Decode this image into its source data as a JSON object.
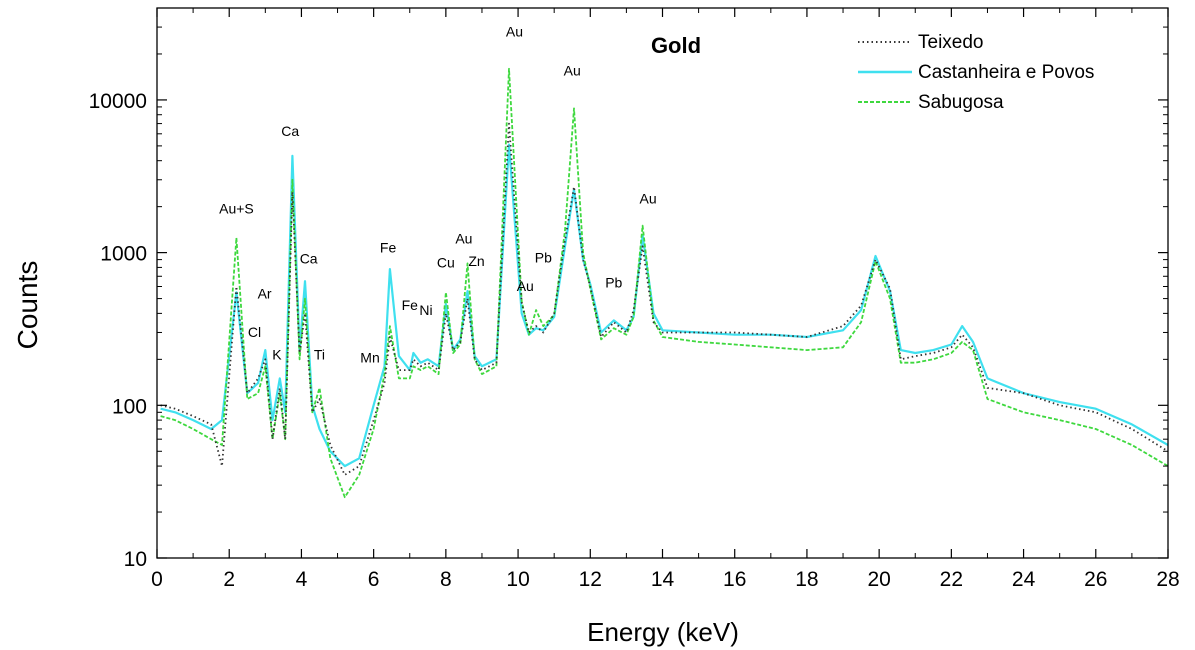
{
  "chart_data": {
    "type": "line",
    "title": "Gold",
    "xlabel": "Energy (keV)",
    "ylabel": "Counts",
    "xlim": [
      0,
      28
    ],
    "ylim": [
      10,
      40000
    ],
    "yscale": "log",
    "grid": false,
    "legend_position": "top-right",
    "x_ticks": [
      0,
      2,
      4,
      6,
      8,
      10,
      12,
      14,
      16,
      18,
      20,
      22,
      24,
      26,
      28
    ],
    "x_tick_labels": [
      "0",
      "2",
      "4",
      "6",
      "8",
      "10",
      "12",
      "14",
      "16",
      "18",
      "20",
      "22",
      "24",
      "26",
      "28"
    ],
    "y_ticks": [
      10,
      100,
      1000,
      10000
    ],
    "y_tick_labels": [
      "10",
      "100",
      "1000",
      "10000"
    ],
    "series": [
      {
        "name": "Teixedo",
        "color": "#333333",
        "style": "dotted",
        "x": [
          0.1,
          0.5,
          1.0,
          1.5,
          1.8,
          2.2,
          2.5,
          2.8,
          3.0,
          3.2,
          3.4,
          3.55,
          3.75,
          3.95,
          4.1,
          4.3,
          4.5,
          4.8,
          5.2,
          5.6,
          6.0,
          6.3,
          6.45,
          6.7,
          7.0,
          7.1,
          7.3,
          7.5,
          7.8,
          8.0,
          8.2,
          8.4,
          8.6,
          8.8,
          9.0,
          9.4,
          9.75,
          10.1,
          10.3,
          10.5,
          10.7,
          11.0,
          11.3,
          11.55,
          11.8,
          12.0,
          12.3,
          12.65,
          13.0,
          13.2,
          13.45,
          13.75,
          14.0,
          15.0,
          16.0,
          17.0,
          18.0,
          19.0,
          19.5,
          19.9,
          20.3,
          20.6,
          21.0,
          21.5,
          22.0,
          22.3,
          22.6,
          23.0,
          24.0,
          25.0,
          26.0,
          27.0,
          28.0
        ],
        "values": [
          100,
          95,
          85,
          75,
          40,
          600,
          120,
          150,
          200,
          60,
          130,
          60,
          2500,
          220,
          400,
          90,
          110,
          55,
          35,
          40,
          80,
          140,
          280,
          170,
          170,
          200,
          180,
          190,
          170,
          400,
          230,
          260,
          500,
          200,
          170,
          190,
          7000,
          470,
          300,
          330,
          300,
          400,
          1200,
          2700,
          900,
          600,
          280,
          350,
          300,
          420,
          1100,
          350,
          300,
          300,
          300,
          290,
          280,
          330,
          450,
          900,
          580,
          200,
          210,
          220,
          240,
          290,
          240,
          130,
          120,
          100,
          90,
          70,
          50
        ]
      },
      {
        "name": "Castanheira e Povos",
        "color": "#3fe0ef",
        "style": "solid",
        "x": [
          0.1,
          0.5,
          1.0,
          1.5,
          1.8,
          2.2,
          2.5,
          2.8,
          3.0,
          3.2,
          3.4,
          3.55,
          3.75,
          3.95,
          4.1,
          4.3,
          4.5,
          4.8,
          5.2,
          5.6,
          6.0,
          6.3,
          6.45,
          6.7,
          7.0,
          7.1,
          7.3,
          7.5,
          7.8,
          8.0,
          8.2,
          8.4,
          8.6,
          8.8,
          9.0,
          9.4,
          9.75,
          10.1,
          10.3,
          10.5,
          10.7,
          11.0,
          11.3,
          11.55,
          11.8,
          12.0,
          12.3,
          12.65,
          13.0,
          13.2,
          13.45,
          13.75,
          14.0,
          15.0,
          16.0,
          17.0,
          18.0,
          19.0,
          19.5,
          19.9,
          20.3,
          20.6,
          21.0,
          21.5,
          22.0,
          22.3,
          22.6,
          23.0,
          24.0,
          25.0,
          26.0,
          27.0,
          28.0
        ],
        "values": [
          95,
          90,
          80,
          70,
          80,
          550,
          120,
          140,
          230,
          80,
          150,
          90,
          4300,
          230,
          650,
          100,
          70,
          50,
          40,
          45,
          100,
          180,
          780,
          210,
          170,
          220,
          190,
          200,
          180,
          460,
          230,
          270,
          560,
          210,
          180,
          200,
          5100,
          400,
          290,
          320,
          310,
          380,
          1100,
          2600,
          900,
          620,
          300,
          360,
          310,
          380,
          1300,
          400,
          310,
          300,
          290,
          290,
          280,
          310,
          420,
          950,
          560,
          230,
          220,
          230,
          250,
          330,
          260,
          150,
          120,
          105,
          95,
          75,
          55
        ]
      },
      {
        "name": "Sabugosa",
        "color": "#3ed83e",
        "style": "dashed",
        "x": [
          0.1,
          0.5,
          1.0,
          1.5,
          1.8,
          2.2,
          2.5,
          2.8,
          3.0,
          3.2,
          3.4,
          3.55,
          3.75,
          3.95,
          4.1,
          4.3,
          4.5,
          4.8,
          5.2,
          5.6,
          6.0,
          6.3,
          6.45,
          6.7,
          7.0,
          7.1,
          7.3,
          7.5,
          7.8,
          8.0,
          8.2,
          8.4,
          8.6,
          8.8,
          9.0,
          9.4,
          9.75,
          10.1,
          10.3,
          10.5,
          10.7,
          11.0,
          11.3,
          11.55,
          11.8,
          12.0,
          12.3,
          12.65,
          13.0,
          13.2,
          13.45,
          13.75,
          14.0,
          15.0,
          16.0,
          17.0,
          18.0,
          19.0,
          19.5,
          19.9,
          20.3,
          20.6,
          21.0,
          21.5,
          22.0,
          22.3,
          22.6,
          23.0,
          24.0,
          25.0,
          26.0,
          27.0,
          28.0
        ],
        "values": [
          85,
          80,
          70,
          60,
          55,
          1250,
          110,
          120,
          180,
          60,
          120,
          60,
          3000,
          200,
          500,
          90,
          130,
          45,
          25,
          35,
          70,
          160,
          330,
          150,
          150,
          180,
          170,
          180,
          160,
          550,
          220,
          250,
          850,
          200,
          160,
          180,
          16000,
          480,
          290,
          420,
          330,
          390,
          1400,
          8800,
          1000,
          580,
          270,
          320,
          290,
          380,
          1500,
          360,
          280,
          260,
          250,
          240,
          230,
          240,
          350,
          880,
          500,
          190,
          190,
          200,
          220,
          260,
          230,
          110,
          90,
          80,
          70,
          55,
          40
        ]
      }
    ],
    "annotations": [
      {
        "text": "Au+S",
        "x": 2.2,
        "y": 1800
      },
      {
        "text": "Cl",
        "x": 2.7,
        "y": 280
      },
      {
        "text": "Ar",
        "x": 2.98,
        "y": 500
      },
      {
        "text": "K",
        "x": 3.32,
        "y": 200
      },
      {
        "text": "Ca",
        "x": 3.69,
        "y": 5800
      },
      {
        "text": "Ca",
        "x": 4.2,
        "y": 850
      },
      {
        "text": "Ti",
        "x": 4.5,
        "y": 200
      },
      {
        "text": "Mn",
        "x": 5.9,
        "y": 190
      },
      {
        "text": "Fe",
        "x": 6.4,
        "y": 1000
      },
      {
        "text": "Fe",
        "x": 7.0,
        "y": 420
      },
      {
        "text": "Ni",
        "x": 7.45,
        "y": 390
      },
      {
        "text": "Cu",
        "x": 8.0,
        "y": 800
      },
      {
        "text": "Au",
        "x": 8.5,
        "y": 1150
      },
      {
        "text": "Zn",
        "x": 8.85,
        "y": 820
      },
      {
        "text": "Au",
        "x": 9.9,
        "y": 26000
      },
      {
        "text": "Au",
        "x": 10.2,
        "y": 560
      },
      {
        "text": "Pb",
        "x": 10.7,
        "y": 860
      },
      {
        "text": "Au",
        "x": 11.5,
        "y": 14500
      },
      {
        "text": "Pb",
        "x": 12.65,
        "y": 590
      },
      {
        "text": "Au",
        "x": 13.6,
        "y": 2100
      }
    ]
  }
}
